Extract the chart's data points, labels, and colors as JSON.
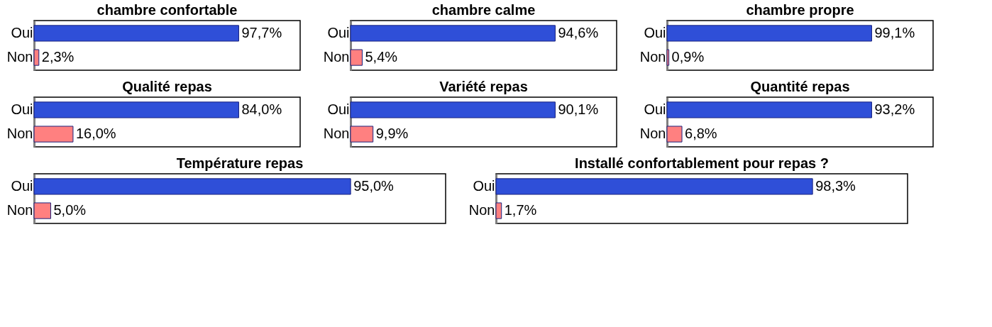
{
  "chart_data": [
    {
      "type": "bar",
      "orientation": "horizontal",
      "title": "chambre confortable",
      "categories": [
        "Oui",
        "Non"
      ],
      "values": [
        97.7,
        2.3
      ],
      "colors": [
        "#2f4fd8",
        "#ff8080"
      ],
      "value_labels": [
        "97,7%",
        "2,3%"
      ],
      "tick_labels": "y"
    },
    {
      "type": "bar",
      "orientation": "horizontal",
      "title": "chambre calme",
      "categories": [
        "Oui",
        "Non"
      ],
      "values": [
        94.6,
        5.4
      ],
      "colors": [
        "#2f4fd8",
        "#ff8080"
      ],
      "value_labels": [
        "94,6%",
        "5,4%"
      ],
      "tick_labels": "y"
    },
    {
      "type": "bar",
      "orientation": "horizontal",
      "title": "chambre propre",
      "categories": [
        "Oui",
        "Non"
      ],
      "values": [
        99.1,
        0.9
      ],
      "colors": [
        "#2f4fd8",
        "#ff8080"
      ],
      "value_labels": [
        "99,1%",
        "0,9%"
      ],
      "tick_labels": "y"
    },
    {
      "type": "bar",
      "orientation": "horizontal",
      "title": "Qualité repas",
      "categories": [
        "Oui",
        "Non"
      ],
      "values": [
        84.0,
        16.0
      ],
      "colors": [
        "#2f4fd8",
        "#ff8080"
      ],
      "value_labels": [
        "84,0%",
        "16,0%"
      ],
      "tick_labels": "y"
    },
    {
      "type": "bar",
      "orientation": "horizontal",
      "title": "Variété repas",
      "categories": [
        "Oui",
        "Non"
      ],
      "values": [
        90.1,
        9.9
      ],
      "colors": [
        "#2f4fd8",
        "#ff8080"
      ],
      "value_labels": [
        "90,1%",
        "9,9%"
      ],
      "tick_labels": "y"
    },
    {
      "type": "bar",
      "orientation": "horizontal",
      "title": "Quantité repas",
      "categories": [
        "Oui",
        "Non"
      ],
      "values": [
        93.2,
        6.8
      ],
      "colors": [
        "#2f4fd8",
        "#ff8080"
      ],
      "value_labels": [
        "93,2%",
        "6,8%"
      ],
      "tick_labels": "y"
    },
    {
      "type": "bar",
      "orientation": "horizontal",
      "title": "Température repas",
      "categories": [
        "Oui",
        "Non"
      ],
      "values": [
        95.0,
        5.0
      ],
      "colors": [
        "#2f4fd8",
        "#ff8080"
      ],
      "value_labels": [
        "95,0%",
        "5,0%"
      ],
      "tick_labels": "y"
    },
    {
      "type": "bar",
      "orientation": "horizontal",
      "title": "Installé confortablement pour repas ?",
      "categories": [
        "Oui",
        "Non"
      ],
      "values": [
        98.3,
        1.7
      ],
      "colors": [
        "#2f4fd8",
        "#ff8080"
      ],
      "value_labels": [
        "98,3%",
        "1,7%"
      ],
      "tick_labels": "y"
    }
  ]
}
